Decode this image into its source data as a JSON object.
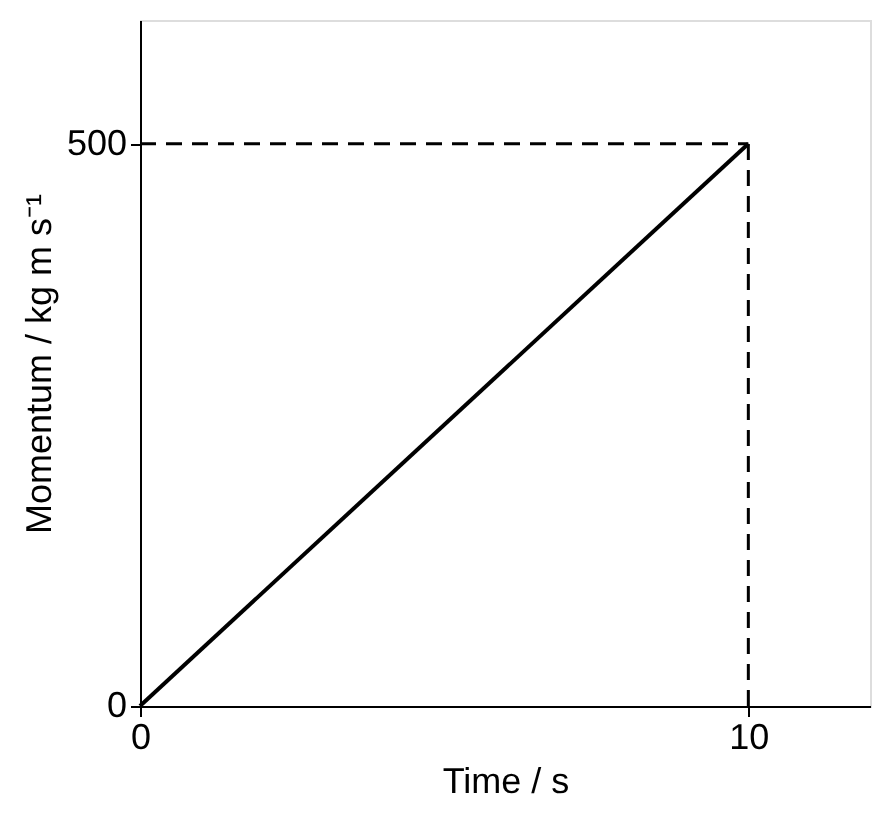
{
  "chart_data": {
    "type": "line",
    "xlabel": "Time / s",
    "ylabel": "Momentum / kg m s⁻¹",
    "x": [
      0,
      10
    ],
    "values": [
      0,
      500
    ],
    "color": "#000000",
    "xlim": [
      0,
      12
    ],
    "ylim": [
      0,
      610
    ],
    "xticks": [
      0,
      10
    ],
    "yticks": [
      0,
      500
    ],
    "grid": false,
    "ref_lines": [
      {
        "axis": "y",
        "value": 500,
        "line_style": "dashed",
        "color": "#000000"
      },
      {
        "axis": "x",
        "value": 10,
        "line_style": "dashed",
        "color": "#000000"
      }
    ]
  }
}
